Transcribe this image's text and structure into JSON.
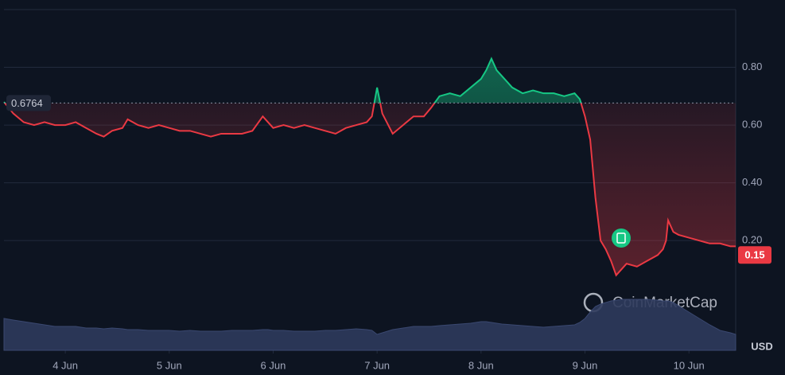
{
  "chart_data": {
    "type": "line",
    "x": [
      3.41,
      3.5,
      3.6,
      3.7,
      3.8,
      3.9,
      4.0,
      4.1,
      4.2,
      4.3,
      4.37,
      4.45,
      4.55,
      4.6,
      4.7,
      4.8,
      4.9,
      5.0,
      5.1,
      5.2,
      5.3,
      5.4,
      5.5,
      5.6,
      5.7,
      5.8,
      5.9,
      5.95,
      6.0,
      6.1,
      6.2,
      6.3,
      6.4,
      6.5,
      6.6,
      6.7,
      6.8,
      6.9,
      6.95,
      7.0,
      7.05,
      7.15,
      7.25,
      7.35,
      7.45,
      7.52,
      7.6,
      7.7,
      7.8,
      7.9,
      8.0,
      8.05,
      8.1,
      8.15,
      8.2,
      8.3,
      8.4,
      8.5,
      8.6,
      8.7,
      8.8,
      8.9,
      8.95,
      9.0,
      9.05,
      9.1,
      9.15,
      9.2,
      9.25,
      9.3,
      9.35,
      9.4,
      9.5,
      9.6,
      9.7,
      9.75,
      9.78,
      9.8,
      9.85,
      9.9,
      10.0,
      10.1,
      10.2,
      10.3,
      10.4,
      10.45
    ],
    "series": [
      {
        "color": "#ea3943",
        "color_up": "#16c784",
        "values": [
          0.68,
          0.64,
          0.61,
          0.6,
          0.61,
          0.6,
          0.6,
          0.61,
          0.59,
          0.57,
          0.56,
          0.58,
          0.59,
          0.62,
          0.6,
          0.59,
          0.6,
          0.59,
          0.58,
          0.58,
          0.57,
          0.56,
          0.57,
          0.57,
          0.57,
          0.58,
          0.63,
          0.61,
          0.59,
          0.6,
          0.59,
          0.6,
          0.59,
          0.58,
          0.57,
          0.59,
          0.6,
          0.61,
          0.63,
          0.73,
          0.64,
          0.57,
          0.6,
          0.63,
          0.63,
          0.66,
          0.7,
          0.71,
          0.7,
          0.73,
          0.76,
          0.79,
          0.83,
          0.79,
          0.77,
          0.73,
          0.71,
          0.72,
          0.71,
          0.71,
          0.7,
          0.71,
          0.69,
          0.63,
          0.55,
          0.35,
          0.2,
          0.17,
          0.13,
          0.08,
          0.1,
          0.12,
          0.11,
          0.13,
          0.15,
          0.17,
          0.2,
          0.27,
          0.23,
          0.22,
          0.21,
          0.2,
          0.19,
          0.19,
          0.18,
          0.18
        ]
      },
      {
        "axis": "y2",
        "color": "#2e3a5c",
        "values": [
          40,
          38,
          36,
          34,
          32,
          30,
          30,
          30,
          28,
          28,
          27,
          28,
          27,
          26,
          26,
          25,
          25,
          25,
          24,
          25,
          24,
          24,
          24,
          25,
          25,
          25,
          26,
          26,
          25,
          25,
          24,
          24,
          24,
          25,
          25,
          26,
          27,
          26,
          25,
          20,
          22,
          26,
          28,
          30,
          30,
          30,
          31,
          32,
          33,
          34,
          36,
          36,
          35,
          34,
          33,
          32,
          31,
          30,
          29,
          30,
          31,
          32,
          35,
          40,
          48,
          55,
          58,
          60,
          62,
          63,
          64,
          64,
          64,
          64,
          63,
          62,
          62,
          62,
          60,
          56,
          48,
          40,
          32,
          25,
          22,
          20
        ]
      }
    ],
    "baseline": 0.6764,
    "current_price": 0.15,
    "xlim": [
      3.41,
      10.45
    ],
    "xticks": [
      {
        "value": 4,
        "label": "4 Jun"
      },
      {
        "value": 5,
        "label": "5 Jun"
      },
      {
        "value": 6,
        "label": "6 Jun"
      },
      {
        "value": 7,
        "label": "7 Jun"
      },
      {
        "value": 8,
        "label": "8 Jun"
      },
      {
        "value": 9,
        "label": "9 Jun"
      },
      {
        "value": 10,
        "label": "10 Jun"
      }
    ],
    "ylim": [
      -0.18,
      1.0
    ],
    "yticks": [
      {
        "value": 0.8,
        "label": "0.80"
      },
      {
        "value": 0.6,
        "label": "0.60"
      },
      {
        "value": 0.4,
        "label": "0.40"
      },
      {
        "value": 0.2,
        "label": "0.20"
      }
    ],
    "y2lim": [
      0,
      100
    ],
    "grid": true,
    "currency": "USD",
    "watermark": "CoinMarketCap"
  }
}
